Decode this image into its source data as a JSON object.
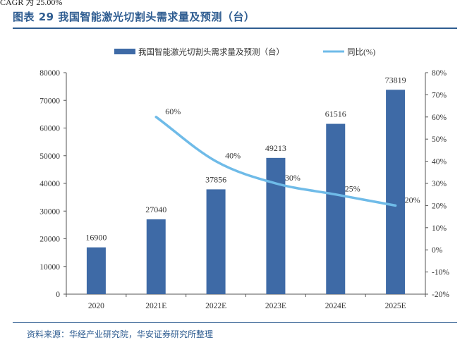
{
  "header": {
    "cut_text": "CAGR 为 25.00%",
    "figure_title": "图表 29 我国智能激光切割头需求量及预测（台）"
  },
  "footer": {
    "source": "资料来源：华经产业研究院，华安证券研究所整理"
  },
  "chart_data": {
    "type": "bar",
    "categories": [
      "2020",
      "2021E",
      "2022E",
      "2023E",
      "2024E",
      "2025E"
    ],
    "series": [
      {
        "name": "我国智能激光切割头需求量及预测（台）",
        "type": "bar",
        "axis": "left",
        "color": "#3e6aa6",
        "values": [
          16900,
          27040,
          37856,
          49213,
          61516,
          73819
        ],
        "labels": [
          "16900",
          "27040",
          "37856",
          "49213",
          "61516",
          "73819"
        ]
      },
      {
        "name": "同比(%)",
        "type": "line",
        "axis": "right",
        "color": "#6fbbe8",
        "values": [
          null,
          60,
          40,
          30,
          25,
          20
        ],
        "labels": [
          "",
          "60%",
          "40%",
          "30%",
          "25%",
          "20%"
        ]
      }
    ],
    "y_left": {
      "min": 0,
      "max": 80000,
      "step": 10000,
      "ticks": [
        "0",
        "10000",
        "20000",
        "30000",
        "40000",
        "50000",
        "60000",
        "70000",
        "80000"
      ]
    },
    "y_right": {
      "min": -20,
      "max": 80,
      "step": 10,
      "ticks": [
        "-20%",
        "-10%",
        "0%",
        "10%",
        "20%",
        "30%",
        "40%",
        "50%",
        "60%",
        "70%",
        "80%"
      ]
    },
    "legend_position": "top-center",
    "grid": false
  }
}
